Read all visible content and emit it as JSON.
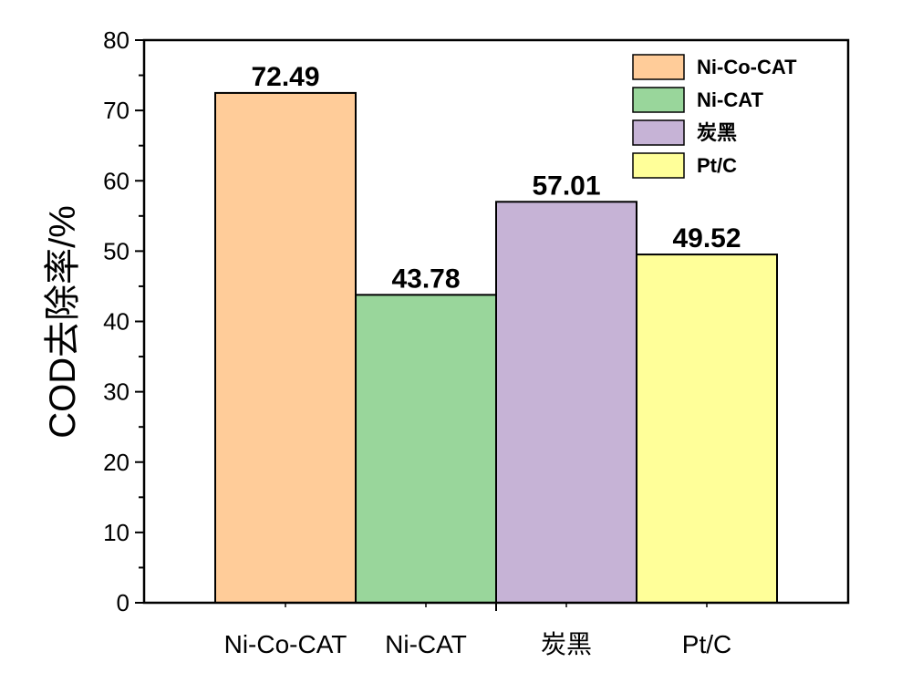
{
  "chart_data": {
    "type": "bar",
    "categories": [
      "Ni-Co-CAT",
      "Ni-CAT",
      "炭黑",
      "Pt/C"
    ],
    "values": [
      72.49,
      43.78,
      57.01,
      49.52
    ],
    "data_labels": [
      "72.49",
      "43.78",
      "57.01",
      "49.52"
    ],
    "colors": [
      "#FFCC99",
      "#99D69B",
      "#C6B3D6",
      "#FFFF99"
    ],
    "ylabel": "COD去除率/%",
    "xlabel": "",
    "ylim": [
      0,
      80
    ],
    "yticks": [
      0,
      10,
      20,
      30,
      40,
      50,
      60,
      70,
      80
    ],
    "ytick_labels": [
      "0",
      "10",
      "20",
      "30",
      "40",
      "50",
      "60",
      "70",
      "80"
    ],
    "grid": false,
    "legend": {
      "placement": "top-right",
      "entries": [
        "Ni-Co-CAT",
        "Ni-CAT",
        "炭黑",
        "Pt/C"
      ]
    }
  }
}
